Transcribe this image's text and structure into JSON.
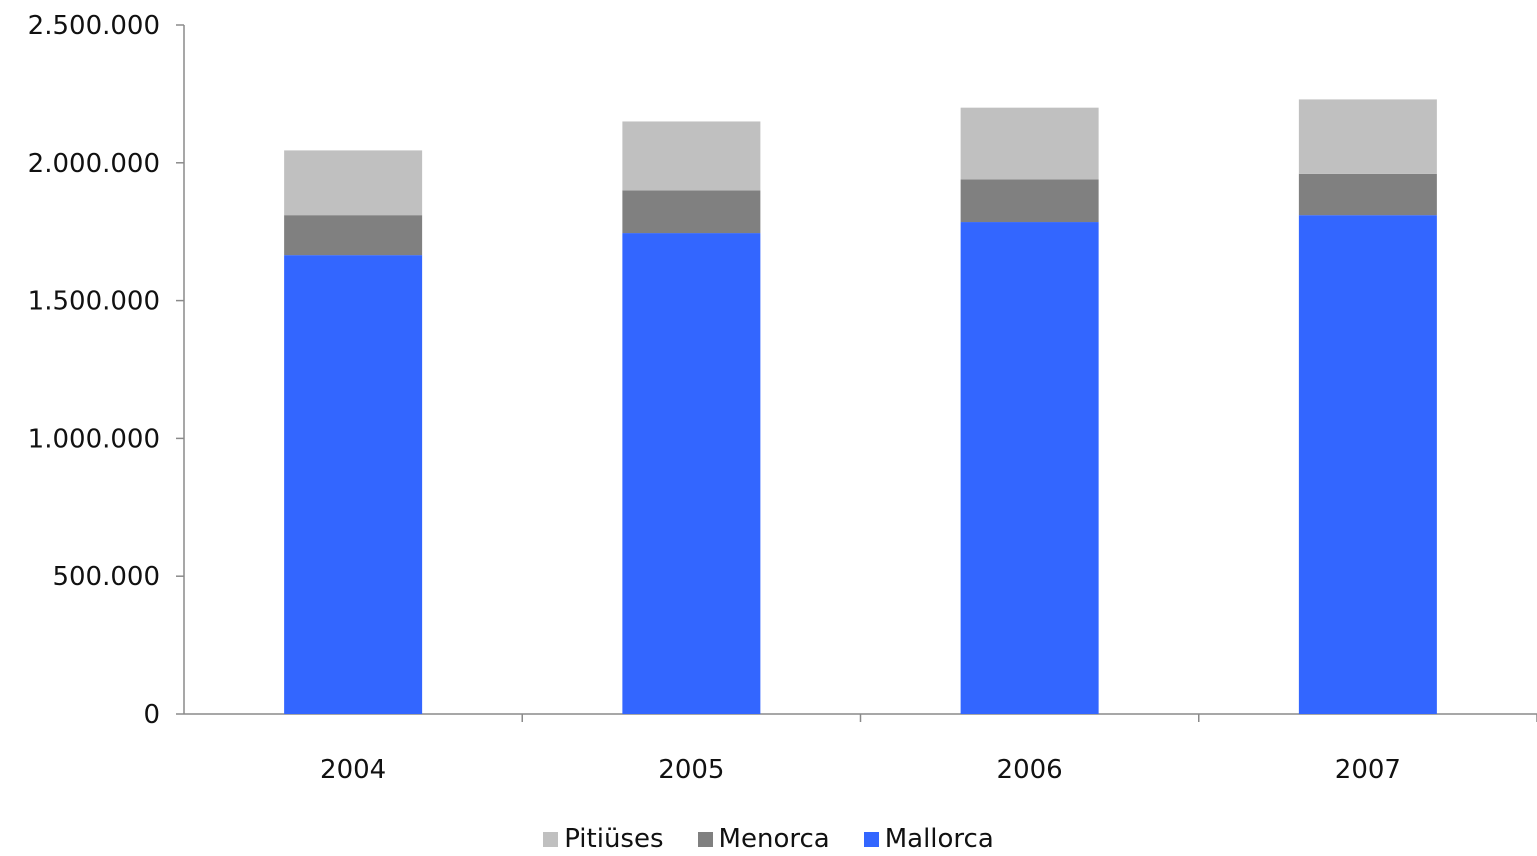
{
  "chart_data": {
    "type": "bar",
    "stacked": true,
    "categories": [
      "2004",
      "2005",
      "2006",
      "2007"
    ],
    "series": [
      {
        "name": "Mallorca",
        "color": "#3366ff",
        "values": [
          1665000,
          1745000,
          1785000,
          1810000
        ]
      },
      {
        "name": "Menorca",
        "color": "#808080",
        "values": [
          145000,
          155000,
          155000,
          150000
        ]
      },
      {
        "name": "Pitiüses",
        "color": "#c0c0c0",
        "values": [
          235000,
          250000,
          260000,
          270000
        ]
      }
    ],
    "legend_order": [
      "Pitiüses",
      "Menorca",
      "Mallorca"
    ],
    "legend_position": "bottom",
    "ylim": [
      0,
      2500000
    ],
    "yticks": [
      0,
      500000,
      1000000,
      1500000,
      2000000,
      2500000
    ],
    "ytick_labels": [
      "0",
      "500.000",
      "1.000.000",
      "1.500.000",
      "2.000.000",
      "2.500.000"
    ],
    "grid": false,
    "title": "",
    "xlabel": "",
    "ylabel": ""
  }
}
